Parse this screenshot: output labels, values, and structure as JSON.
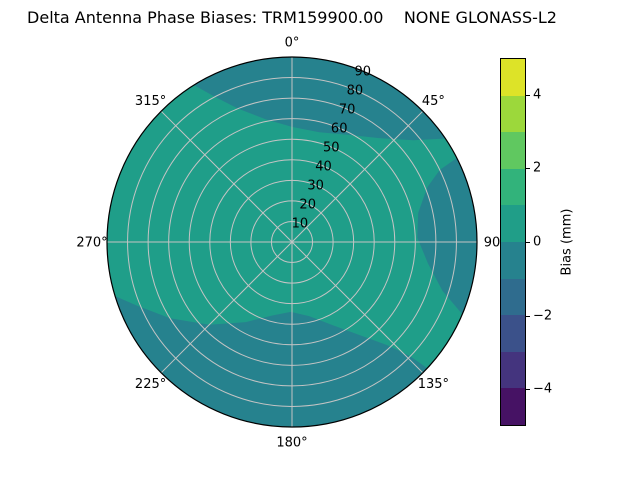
{
  "title": "Delta Antenna Phase Biases: TRM159900.00    NONE GLONASS-L2",
  "chart_data": {
    "type": "heatmap",
    "projection": "polar",
    "title": "Delta Antenna Phase Biases: TRM159900.00    NONE GLONASS-L2",
    "theta_ticks_deg": [
      0,
      45,
      90,
      135,
      180,
      225,
      270,
      315
    ],
    "theta_tick_labels": [
      "0°",
      "45°",
      "90",
      "135°",
      "180°",
      "225°",
      "270°",
      "315°"
    ],
    "radial_ticks": [
      10,
      20,
      30,
      40,
      50,
      60,
      70,
      80,
      90
    ],
    "radial_tick_labels": [
      "10",
      "20",
      "30",
      "40",
      "50",
      "60",
      "70",
      "80",
      "90"
    ],
    "radial_label_angle_deg": 22.5,
    "r_max": 90,
    "grid_color": "#c4c4c4",
    "spine_color": "#000000",
    "levels_mm": [
      -5,
      -4,
      -3,
      -2,
      -1,
      0,
      1,
      2,
      3,
      4,
      5
    ],
    "base_band": {
      "range_mm": "0 to 1",
      "color": "#1f9e89"
    },
    "negative_band": {
      "range_mm": "-1 to 0",
      "color": "#26828e"
    },
    "regions": [
      {
        "name": "north-negative-arc",
        "band": "-1 to 0",
        "rim_from_deg": -32,
        "rim_to_deg": 56,
        "inner_boundary": [
          [
            50,
            77
          ],
          [
            40,
            66
          ],
          [
            28,
            59
          ],
          [
            14,
            55
          ],
          [
            0,
            56
          ],
          [
            -12,
            61
          ],
          [
            -22,
            70
          ],
          [
            -28,
            80
          ]
        ]
      },
      {
        "name": "east-negative-patch",
        "band": "-1 to 0",
        "rim_from_deg": 63,
        "rim_to_deg": 113,
        "inner_boundary": [
          [
            108,
            77
          ],
          [
            99,
            67
          ],
          [
            88,
            61
          ],
          [
            77,
            63
          ],
          [
            68,
            71
          ],
          [
            64,
            80
          ]
        ]
      },
      {
        "name": "south-negative-region",
        "band": "-1 to 0",
        "rim_from_deg": 133,
        "rim_to_deg": 253,
        "inner_boundary": [
          [
            248,
            82
          ],
          [
            238,
            70
          ],
          [
            225,
            57
          ],
          [
            210,
            45
          ],
          [
            195,
            37
          ],
          [
            181,
            34
          ],
          [
            167,
            37
          ],
          [
            154,
            45
          ],
          [
            144,
            56
          ],
          [
            137,
            69
          ],
          [
            134,
            80
          ]
        ]
      }
    ],
    "colorbar": {
      "label": "Bias (mm)",
      "vmin": -5,
      "vmax": 5,
      "ticks": [
        {
          "value": 4,
          "label": "4"
        },
        {
          "value": 2,
          "label": "2"
        },
        {
          "value": 0,
          "label": "0"
        },
        {
          "value": -2,
          "label": "−2"
        },
        {
          "value": -4,
          "label": "−4"
        }
      ],
      "band_colors_top_to_bottom": [
        "#dde328",
        "#9cd83b",
        "#60c860",
        "#32b37b",
        "#209e88",
        "#26828e",
        "#2f6c8e",
        "#3b518a",
        "#44347e",
        "#461264"
      ]
    }
  }
}
